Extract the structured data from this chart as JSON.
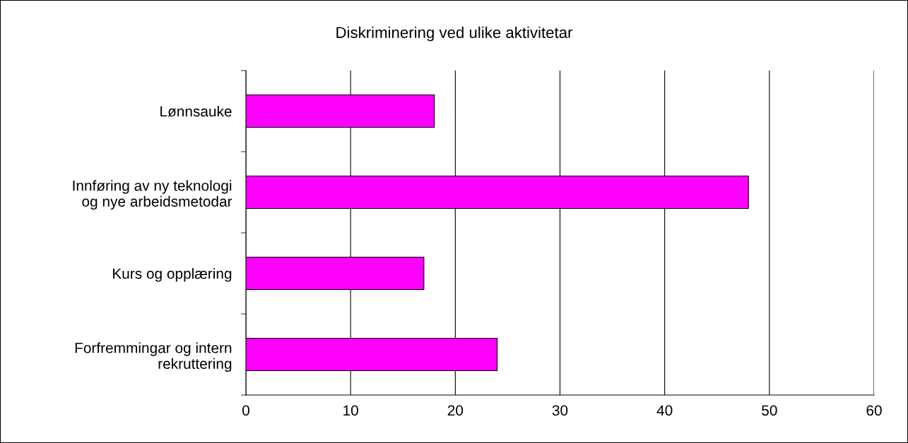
{
  "chart_data": {
    "type": "bar",
    "orientation": "horizontal",
    "title": "Diskriminering ved ulike aktivitetar",
    "categories": [
      "Lønnsauke",
      "Innføring av ny teknologi\nog nye arbeidsmetodar",
      "Kurs og opplæring",
      "Forfremmingar og intern\nrekruttering"
    ],
    "values": [
      18,
      48,
      17,
      24
    ],
    "color": "#ff00ff",
    "xlim": [
      0,
      60
    ],
    "xticks": [
      0,
      10,
      20,
      30,
      40,
      50,
      60
    ],
    "grid": "x",
    "legend": false
  }
}
